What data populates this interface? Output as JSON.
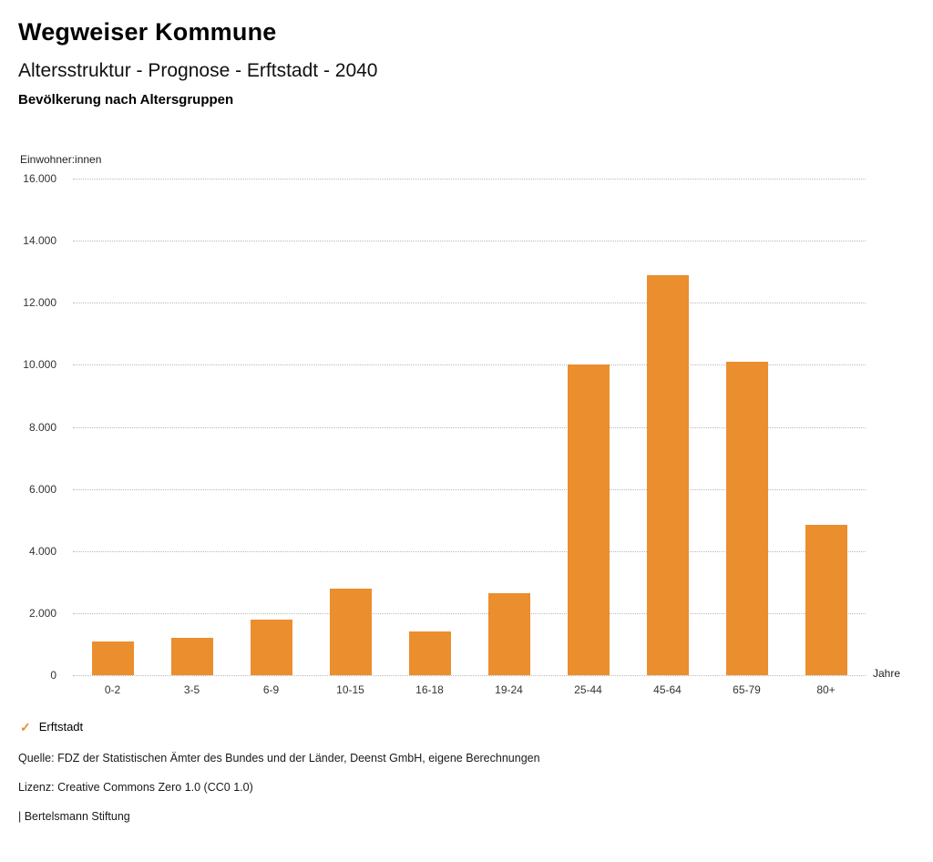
{
  "header": {
    "title": "Wegweiser Kommune",
    "subtitle": "Altersstruktur - Prognose - Erftstadt - 2040",
    "section_title": "Bevölkerung nach Altersgruppen"
  },
  "chart_data": {
    "type": "bar",
    "title": "Bevölkerung nach Altersgruppen",
    "ylabel": "Einwohner:innen",
    "xlabel": "Jahre",
    "categories": [
      "0-2",
      "3-5",
      "6-9",
      "10-15",
      "16-18",
      "19-24",
      "25-44",
      "45-64",
      "65-79",
      "80+"
    ],
    "values": [
      1100,
      1200,
      1800,
      2800,
      1400,
      2650,
      10000,
      12900,
      10100,
      4850
    ],
    "series_name": "Erftstadt",
    "ylim": [
      0,
      16000
    ],
    "yticks": [
      {
        "value": 0,
        "label": "0"
      },
      {
        "value": 2000,
        "label": "2.000"
      },
      {
        "value": 4000,
        "label": "4.000"
      },
      {
        "value": 6000,
        "label": "6.000"
      },
      {
        "value": 8000,
        "label": "8.000"
      },
      {
        "value": 10000,
        "label": "10.000"
      },
      {
        "value": 12000,
        "label": "12.000"
      },
      {
        "value": 14000,
        "label": "14.000"
      },
      {
        "value": 16000,
        "label": "16.000"
      }
    ],
    "grid": "horizontal-dotted",
    "bar_color": "#EB8E2E",
    "legend_position": "bottom-left"
  },
  "legend": {
    "check_icon": "✓",
    "label": "Erftstadt"
  },
  "footer": {
    "source": "Quelle: FDZ der Statistischen Ämter des Bundes und der Länder, Deenst GmbH, eigene Berechnungen",
    "license": "Lizenz: Creative Commons Zero 1.0 (CC0 1.0)",
    "attribution": "| Bertelsmann Stiftung"
  },
  "colors": {
    "accent": "#EB8E2E"
  }
}
